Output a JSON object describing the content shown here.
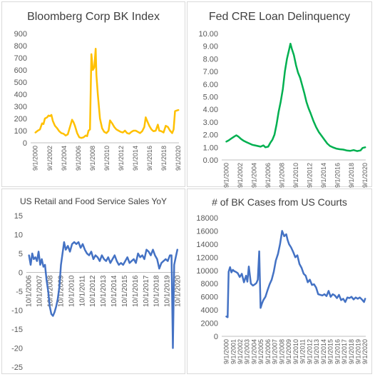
{
  "chart_data": [
    {
      "type": "line",
      "title": "Bloomberg Corp BK Index",
      "color": "#FFC000",
      "ylim": [
        0,
        900
      ],
      "yticks": [
        0,
        100,
        200,
        300,
        400,
        500,
        600,
        700,
        800,
        900
      ],
      "ytick_labels": [
        "0",
        "100",
        "200",
        "300",
        "400",
        "500",
        "600",
        "700",
        "800",
        "900"
      ],
      "xlim": [
        2000.0,
        2020.75
      ],
      "xticks": [
        2000.67,
        2002.67,
        2004.67,
        2006.67,
        2008.67,
        2010.67,
        2012.67,
        2014.67,
        2016.67,
        2018.67,
        2020.67
      ],
      "xtick_labels": [
        "9/1/2000",
        "9/1/2002",
        "9/1/2004",
        "9/1/2006",
        "9/1/2008",
        "9/1/2010",
        "9/1/2012",
        "9/1/2014",
        "9/1/2016",
        "9/1/2018",
        "9/1/2020"
      ],
      "x": [
        2000.67,
        2001.0,
        2001.3,
        2001.6,
        2001.8,
        2002.0,
        2002.3,
        2002.5,
        2002.7,
        2002.9,
        2003.1,
        2003.4,
        2003.7,
        2004.0,
        2004.3,
        2004.6,
        2004.9,
        2005.2,
        2005.5,
        2005.8,
        2006.0,
        2006.2,
        2006.5,
        2006.8,
        2007.1,
        2007.4,
        2007.7,
        2007.9,
        2008.1,
        2008.3,
        2008.5,
        2008.7,
        2008.9,
        2009.1,
        2009.2,
        2009.4,
        2009.7,
        2010.0,
        2010.3,
        2010.6,
        2010.9,
        2011.1,
        2011.4,
        2011.7,
        2012.0,
        2012.3,
        2012.6,
        2012.9,
        2013.2,
        2013.5,
        2013.8,
        2014.1,
        2014.4,
        2014.7,
        2015.0,
        2015.3,
        2015.6,
        2015.9,
        2016.1,
        2016.3,
        2016.6,
        2016.9,
        2017.2,
        2017.5,
        2017.8,
        2018.0,
        2018.3,
        2018.6,
        2018.9,
        2019.2,
        2019.5,
        2019.8,
        2020.0,
        2020.2,
        2020.4,
        2020.67
      ],
      "y": [
        85,
        100,
        110,
        160,
        155,
        200,
        210,
        225,
        220,
        230,
        180,
        140,
        120,
        95,
        80,
        75,
        60,
        70,
        130,
        190,
        170,
        140,
        80,
        45,
        40,
        45,
        60,
        55,
        100,
        110,
        730,
        600,
        620,
        775,
        560,
        400,
        200,
        120,
        90,
        80,
        100,
        185,
        160,
        130,
        110,
        100,
        90,
        85,
        100,
        80,
        75,
        90,
        100,
        100,
        90,
        80,
        95,
        130,
        210,
        180,
        140,
        110,
        95,
        100,
        150,
        100,
        95,
        85,
        140,
        130,
        100,
        80,
        110,
        260,
        265,
        270
      ]
    },
    {
      "type": "line",
      "title": "Fed CRE Loan Delinquency",
      "color": "#00B050",
      "ylim": [
        0,
        10
      ],
      "yticks": [
        0,
        1,
        2,
        3,
        4,
        5,
        6,
        7,
        8,
        9,
        10
      ],
      "ytick_labels": [
        "0.00",
        "1.00",
        "2.00",
        "3.00",
        "4.00",
        "5.00",
        "6.00",
        "7.00",
        "8.00",
        "9.00",
        "10.00"
      ],
      "xlim": [
        2000.0,
        2020.75
      ],
      "xticks": [
        2000.67,
        2002.67,
        2004.67,
        2006.67,
        2008.67,
        2010.67,
        2012.67,
        2014.67,
        2016.67,
        2018.67,
        2020.67
      ],
      "xtick_labels": [
        "9/1/2000",
        "9/1/2002",
        "9/1/2004",
        "9/1/2006",
        "9/1/2008",
        "9/1/2010",
        "9/1/2012",
        "9/1/2014",
        "9/1/2016",
        "9/1/2018",
        "9/1/2020"
      ],
      "x": [
        2000.67,
        2001.0,
        2001.4,
        2001.8,
        2002.1,
        2002.4,
        2002.8,
        2003.2,
        2003.6,
        2004.0,
        2004.4,
        2004.8,
        2005.2,
        2005.6,
        2006.0,
        2006.3,
        2006.7,
        2007.0,
        2007.3,
        2007.6,
        2007.9,
        2008.2,
        2008.5,
        2008.8,
        2009.1,
        2009.4,
        2009.7,
        2009.9,
        2010.1,
        2010.4,
        2010.7,
        2011.0,
        2011.3,
        2011.6,
        2011.9,
        2012.2,
        2012.5,
        2012.8,
        2013.2,
        2013.6,
        2014.0,
        2014.4,
        2014.8,
        2015.2,
        2015.6,
        2016.0,
        2016.5,
        2017.0,
        2017.5,
        2018.0,
        2018.5,
        2019.0,
        2019.5,
        2020.0,
        2020.3,
        2020.67
      ],
      "y": [
        1.45,
        1.55,
        1.7,
        1.85,
        1.95,
        1.85,
        1.65,
        1.5,
        1.4,
        1.3,
        1.2,
        1.15,
        1.1,
        1.05,
        1.15,
        1.0,
        1.05,
        1.35,
        1.6,
        2.0,
        2.8,
        3.8,
        4.6,
        5.6,
        7.0,
        8.0,
        8.7,
        9.2,
        8.8,
        8.3,
        7.5,
        6.9,
        6.5,
        5.9,
        5.3,
        4.6,
        4.1,
        3.7,
        3.1,
        2.6,
        2.2,
        1.9,
        1.6,
        1.3,
        1.1,
        1.0,
        0.9,
        0.85,
        0.82,
        0.75,
        0.72,
        0.78,
        0.7,
        0.75,
        0.95,
        1.0
      ]
    },
    {
      "type": "line",
      "title": "US Retail and Food Service Sales YoY",
      "color": "#4472C4",
      "ylim": [
        -25,
        15
      ],
      "yticks": [
        -25,
        -20,
        -15,
        -10,
        -5,
        0,
        5,
        10,
        15
      ],
      "ytick_labels": [
        "-25",
        "-20",
        "-15",
        "-10",
        "-5",
        "0",
        "5",
        "10",
        "15"
      ],
      "xlim": [
        2006.5,
        2020.85
      ],
      "xticks": [
        2006.75,
        2007.75,
        2008.75,
        2009.75,
        2010.75,
        2011.75,
        2012.75,
        2013.75,
        2014.75,
        2015.75,
        2016.75,
        2017.75,
        2018.75,
        2019.75,
        2020.75
      ],
      "xtick_labels": [
        "10/1/2006",
        "10/1/2007",
        "10/1/2008",
        "10/1/2009",
        "10/1/2010",
        "10/1/2011",
        "10/1/2012",
        "10/1/2013",
        "10/1/2014",
        "10/1/2015",
        "10/1/2016",
        "10/1/2017",
        "10/1/2018",
        "10/1/2019",
        "10/1/2020"
      ],
      "x": [
        2006.75,
        2006.9,
        2007.05,
        2007.2,
        2007.35,
        2007.5,
        2007.65,
        2007.8,
        2007.95,
        2008.1,
        2008.25,
        2008.4,
        2008.55,
        2008.7,
        2008.85,
        2009.0,
        2009.15,
        2009.3,
        2009.45,
        2009.6,
        2009.75,
        2009.9,
        2010.05,
        2010.2,
        2010.4,
        2010.6,
        2010.8,
        2011.0,
        2011.2,
        2011.4,
        2011.6,
        2011.8,
        2012.0,
        2012.2,
        2012.4,
        2012.6,
        2012.8,
        2013.0,
        2013.2,
        2013.4,
        2013.6,
        2013.8,
        2014.0,
        2014.2,
        2014.4,
        2014.6,
        2014.8,
        2015.0,
        2015.2,
        2015.4,
        2015.6,
        2015.8,
        2016.0,
        2016.2,
        2016.4,
        2016.6,
        2016.8,
        2017.0,
        2017.2,
        2017.4,
        2017.6,
        2017.8,
        2018.0,
        2018.2,
        2018.4,
        2018.6,
        2018.8,
        2019.0,
        2019.2,
        2019.4,
        2019.6,
        2019.8,
        2020.0,
        2020.15,
        2020.28,
        2020.4,
        2020.55,
        2020.7
      ],
      "y": [
        4.5,
        2.0,
        5.0,
        3.5,
        4.0,
        3.0,
        5.5,
        2.0,
        3.5,
        1.5,
        2.0,
        -2.0,
        -5.0,
        -9.0,
        -11.0,
        -11.5,
        -10.5,
        -9.0,
        -7.0,
        -4.0,
        2.0,
        5.0,
        8.0,
        6.0,
        7.0,
        5.5,
        7.5,
        8.0,
        7.5,
        8.0,
        6.5,
        7.5,
        6.0,
        5.0,
        4.5,
        5.5,
        3.5,
        4.5,
        4.0,
        3.0,
        4.5,
        3.5,
        3.0,
        4.0,
        2.5,
        3.5,
        4.5,
        3.0,
        2.0,
        2.5,
        2.0,
        3.0,
        4.0,
        2.5,
        3.0,
        3.5,
        2.5,
        5.0,
        4.0,
        4.5,
        3.5,
        6.0,
        5.5,
        4.5,
        6.0,
        4.5,
        3.5,
        1.0,
        2.5,
        3.0,
        3.5,
        3.0,
        4.5,
        4.5,
        -20.0,
        2.0,
        4.0,
        6.0
      ]
    },
    {
      "type": "line",
      "title": "# of BK Cases from US Courts",
      "color": "#4472C4",
      "ylim": [
        0,
        18000
      ],
      "yticks": [
        0,
        2000,
        4000,
        6000,
        8000,
        10000,
        12000,
        14000,
        16000,
        18000
      ],
      "ytick_labels": [
        "0",
        "2000",
        "4000",
        "6000",
        "8000",
        "10000",
        "12000",
        "14000",
        "16000",
        "18000"
      ],
      "xlim": [
        2000.0,
        2020.75
      ],
      "xticks": [
        2000.67,
        2001.67,
        2002.67,
        2003.67,
        2004.67,
        2005.67,
        2006.67,
        2007.67,
        2008.67,
        2009.67,
        2010.67,
        2011.67,
        2012.67,
        2013.67,
        2014.67,
        2015.67,
        2016.67,
        2017.67,
        2018.67,
        2019.67,
        2020.67
      ],
      "xtick_labels": [
        "9/1/2000",
        "9/1/2001",
        "9/1/2002",
        "9/1/2003",
        "9/1/2004",
        "9/1/2005",
        "9/1/2006",
        "9/1/2007",
        "9/1/2008",
        "9/1/2009",
        "9/1/2010",
        "9/1/2011",
        "9/1/2012",
        "9/1/2013",
        "9/1/2014",
        "9/1/2015",
        "9/1/2016",
        "9/1/2017",
        "9/1/2018",
        "9/1/2019",
        "9/1/2020"
      ],
      "x": [
        2000.67,
        2000.85,
        2001.0,
        2001.2,
        2001.4,
        2001.6,
        2001.8,
        2002.0,
        2002.3,
        2002.6,
        2002.9,
        2003.2,
        2003.5,
        2003.7,
        2003.9,
        2004.2,
        2004.5,
        2004.8,
        2005.0,
        2005.2,
        2005.4,
        2005.6,
        2005.8,
        2006.0,
        2006.3,
        2006.6,
        2006.9,
        2007.2,
        2007.5,
        2007.8,
        2008.1,
        2008.4,
        2008.7,
        2009.0,
        2009.3,
        2009.5,
        2009.7,
        2010.0,
        2010.3,
        2010.6,
        2010.9,
        2011.2,
        2011.5,
        2011.8,
        2012.1,
        2012.4,
        2012.7,
        2013.0,
        2013.3,
        2013.6,
        2013.9,
        2014.2,
        2014.5,
        2014.8,
        2015.1,
        2015.4,
        2015.7,
        2016.0,
        2016.3,
        2016.6,
        2016.9,
        2017.2,
        2017.5,
        2017.8,
        2018.1,
        2018.4,
        2018.7,
        2019.0,
        2019.3,
        2019.6,
        2019.9,
        2020.2,
        2020.5,
        2020.67
      ],
      "y": [
        3000,
        2900,
        9800,
        10500,
        9700,
        10100,
        9900,
        9800,
        9600,
        9000,
        9500,
        8200,
        9200,
        8300,
        10600,
        8000,
        7700,
        7900,
        8100,
        8600,
        12900,
        4300,
        5000,
        5500,
        6000,
        7000,
        7900,
        8600,
        9800,
        11500,
        12500,
        14000,
        16000,
        15200,
        15500,
        14600,
        14000,
        13500,
        12800,
        12000,
        12300,
        11000,
        10400,
        9500,
        9200,
        8200,
        8600,
        7800,
        7900,
        7400,
        6400,
        6300,
        6200,
        6400,
        6100,
        6900,
        6000,
        6400,
        6200,
        5800,
        6300,
        5500,
        5700,
        5200,
        5900,
        5800,
        6000,
        5600,
        5900,
        5700,
        5900,
        5600,
        5200,
        5700
      ]
    }
  ]
}
